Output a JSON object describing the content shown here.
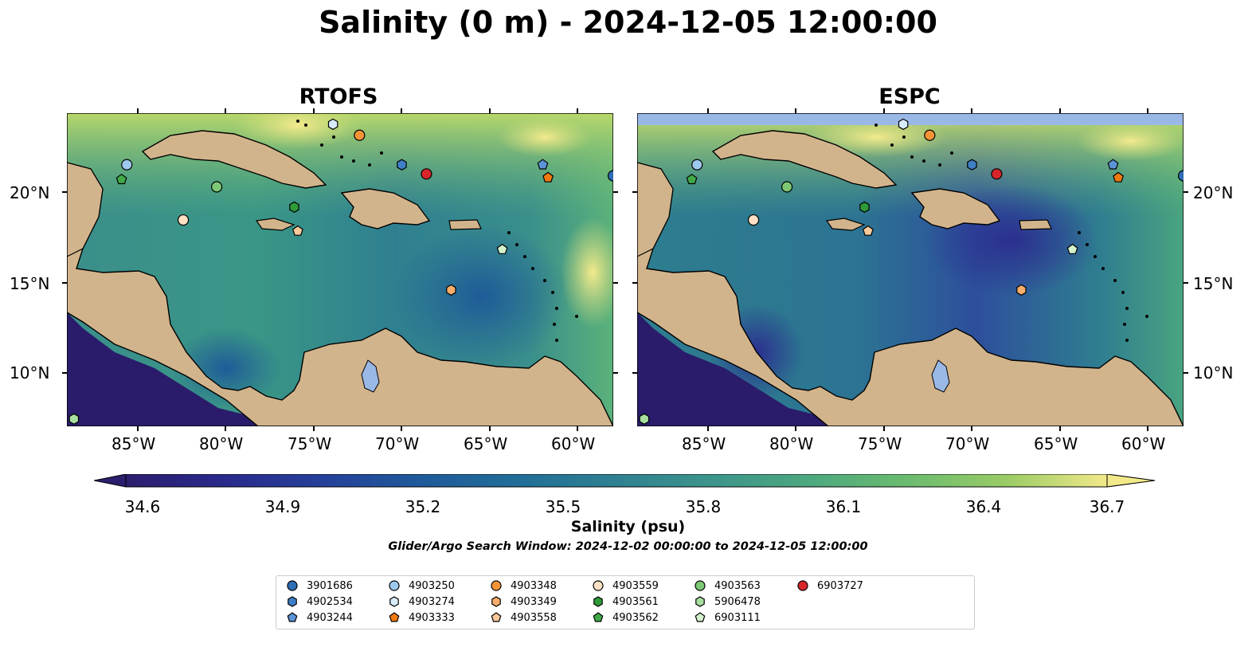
{
  "title": "Salinity (0 m) - 2024-12-05 12:00:00",
  "panels": [
    {
      "name": "RTOFS"
    },
    {
      "name": "ESPC"
    }
  ],
  "lon_ticks": [
    "85°W",
    "80°W",
    "75°W",
    "70°W",
    "65°W",
    "60°W"
  ],
  "lat_ticks": [
    "20°N",
    "15°N",
    "10°N"
  ],
  "map_extent": {
    "lon": [
      -89,
      -58
    ],
    "lat": [
      7,
      24
    ]
  },
  "colorbar": {
    "label": "Salinity (psu)",
    "range": [
      34.6,
      36.7
    ],
    "ticks": [
      "34.6",
      "34.9",
      "35.2",
      "35.5",
      "35.8",
      "36.1",
      "36.4",
      "36.7"
    ],
    "extend": "both",
    "colors": [
      "#2b1e6e",
      "#2a2a8c",
      "#25409a",
      "#1f5a9a",
      "#216e98",
      "#2f8191",
      "#3d958b",
      "#4da97e",
      "#6cbc6f",
      "#9ccc66",
      "#d2de74",
      "#f2e98a"
    ]
  },
  "search_window": "Glider/Argo Search Window: 2024-12-02 00:00:00 to 2024-12-05 12:00:00",
  "legend": [
    {
      "id": "3901686",
      "marker": "circle",
      "color": "#2e6eb4"
    },
    {
      "id": "4902534",
      "marker": "hexagon",
      "color": "#3f7fc7"
    },
    {
      "id": "4903244",
      "marker": "pentagon",
      "color": "#5b93d6"
    },
    {
      "id": "4903250",
      "marker": "circle",
      "color": "#9ec9ef"
    },
    {
      "id": "4903274",
      "marker": "hexagon",
      "color": "#d8ebfb"
    },
    {
      "id": "4903333",
      "marker": "pentagon",
      "color": "#f07a0f"
    },
    {
      "id": "4903348",
      "marker": "circle",
      "color": "#f49437"
    },
    {
      "id": "4903349",
      "marker": "hexagon",
      "color": "#f7ad6b"
    },
    {
      "id": "4903558",
      "marker": "pentagon",
      "color": "#f8c99a"
    },
    {
      "id": "4903559",
      "marker": "circle",
      "color": "#fde0c4"
    },
    {
      "id": "4903561",
      "marker": "hexagon",
      "color": "#2f9a38"
    },
    {
      "id": "4903562",
      "marker": "pentagon",
      "color": "#3faa46"
    },
    {
      "id": "4903563",
      "marker": "circle",
      "color": "#7cc874"
    },
    {
      "id": "5906478",
      "marker": "hexagon",
      "color": "#a9e0a0"
    },
    {
      "id": "6903111",
      "marker": "pentagon",
      "color": "#d3f2cd"
    },
    {
      "id": "6903727",
      "marker": "circle",
      "color": "#d7262a"
    }
  ],
  "observations": [
    {
      "id": "3901686",
      "lon": -58.0,
      "lat": 20.6
    },
    {
      "id": "4902534",
      "lon": -70.0,
      "lat": 21.2
    },
    {
      "id": "4903244",
      "lon": -62.0,
      "lat": 21.2
    },
    {
      "id": "4903250",
      "lon": -85.6,
      "lat": 21.2
    },
    {
      "id": "4903274",
      "lon": -73.9,
      "lat": 23.4
    },
    {
      "id": "4903333",
      "lon": -61.7,
      "lat": 20.5
    },
    {
      "id": "4903348",
      "lon": -72.4,
      "lat": 22.8
    },
    {
      "id": "4903349",
      "lon": -67.2,
      "lat": 14.4
    },
    {
      "id": "4903558",
      "lon": -75.9,
      "lat": 17.6
    },
    {
      "id": "4903559",
      "lon": -82.4,
      "lat": 18.2
    },
    {
      "id": "4903561",
      "lon": -76.1,
      "lat": 18.9
    },
    {
      "id": "4903562",
      "lon": -85.9,
      "lat": 20.4
    },
    {
      "id": "4903563",
      "lon": -80.5,
      "lat": 20.0
    },
    {
      "id": "5906478",
      "lon": -88.6,
      "lat": 7.4
    },
    {
      "id": "6903111",
      "lon": -64.3,
      "lat": 16.6
    },
    {
      "id": "6903727",
      "lon": -68.6,
      "lat": 20.7
    }
  ]
}
